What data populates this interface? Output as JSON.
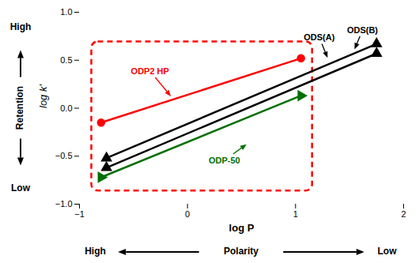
{
  "chart_data": {
    "type": "line",
    "xlabel": "log P",
    "ylabel": "log k'",
    "xlim": [
      -1,
      2
    ],
    "ylim": [
      -1.0,
      1.0
    ],
    "xticks": [
      -1,
      0,
      1,
      2
    ],
    "yticks": [
      {
        "value": -1.0,
        "label": "−1.0"
      },
      {
        "value": -0.5,
        "label": "−0.5"
      },
      {
        "value": 0.0,
        "label": "0.0"
      },
      {
        "value": 0.5,
        "label": "0.5"
      },
      {
        "value": 1.0,
        "label": "1.0"
      }
    ],
    "series": [
      {
        "name": "ODS(A)",
        "color": "#000000",
        "marker": "triangle-up",
        "x": [
          -0.75,
          1.75
        ],
        "values": [
          -0.62,
          0.57
        ]
      },
      {
        "name": "ODS(B)",
        "color": "#000000",
        "marker": "triangle-up",
        "x": [
          -0.75,
          1.75
        ],
        "values": [
          -0.52,
          0.67
        ]
      },
      {
        "name": "ODP2 HP",
        "color": "#ff0000",
        "marker": "circle",
        "x": [
          -0.8,
          1.05
        ],
        "values": [
          -0.15,
          0.52
        ]
      },
      {
        "name": "ODP-50",
        "color": "#007000",
        "marker": "triangle-right",
        "x": [
          -0.8,
          1.05
        ],
        "values": [
          -0.72,
          0.13
        ]
      }
    ],
    "annotations": [
      {
        "text": "ODS(A)",
        "x": 1.08,
        "y": 0.7,
        "arrow_x": 1.3,
        "arrow_y": 0.52,
        "color": "#000000"
      },
      {
        "text": "ODS(B)",
        "x": 1.48,
        "y": 0.78,
        "arrow_x": 1.55,
        "arrow_y": 0.61,
        "color": "#000000"
      },
      {
        "text": "ODP2 HP",
        "x": -0.52,
        "y": 0.35,
        "arrow_x": -0.15,
        "arrow_y": 0.12,
        "color": "#ff0000"
      },
      {
        "text": "ODP-50",
        "x": 0.2,
        "y": -0.58,
        "arrow_x": 0.55,
        "arrow_y": -0.38,
        "color": "#007000"
      }
    ],
    "highlight": {
      "x": -0.85,
      "y": -0.82,
      "width": 1.97,
      "height": 1.47,
      "color": "red",
      "line_style": "dashed"
    },
    "retention": {
      "label": "Retention",
      "high": "High",
      "low": "Low"
    },
    "polarity": {
      "label": "Polarity",
      "high": "High",
      "low": "Low"
    }
  }
}
